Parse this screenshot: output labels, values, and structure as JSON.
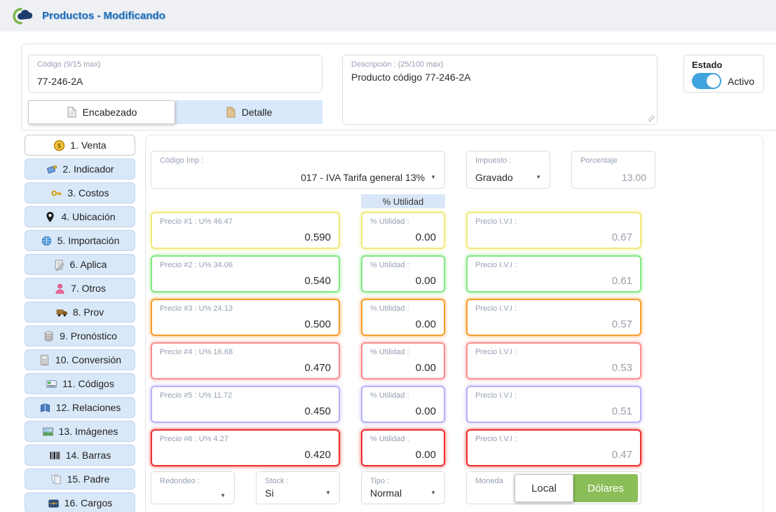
{
  "header": {
    "title": "Productos - Modificando"
  },
  "form": {
    "codigo": {
      "label": "Código (9/15 max)",
      "value": "77-246-2A"
    },
    "descripcion": {
      "label": "Descripción : (25/100 max)",
      "value": "Producto código 77-246-2A"
    },
    "estado": {
      "label": "Estado",
      "value": "Activo",
      "on": true,
      "toggle_color": "#3fa3dd"
    },
    "tabs": [
      {
        "label": "Encabezado",
        "icon": "document-icon",
        "active": true
      },
      {
        "label": "Detalle",
        "icon": "document-tan-icon",
        "active": false
      }
    ]
  },
  "sidebar": {
    "items": [
      {
        "label": "1. Venta",
        "icon": "coin-icon",
        "active": true
      },
      {
        "label": "2. Indicador",
        "icon": "price-tag-icon",
        "active": false
      },
      {
        "label": "3. Costos",
        "icon": "key-icon",
        "active": false
      },
      {
        "label": "4. Ubicación",
        "icon": "location-pin-icon",
        "active": false
      },
      {
        "label": "5. Importación",
        "icon": "globe-icon",
        "active": false
      },
      {
        "label": "6. Aplica",
        "icon": "notes-icon",
        "active": false
      },
      {
        "label": "7. Otros",
        "icon": "person-icon",
        "active": false
      },
      {
        "label": "8. Prov",
        "icon": "truck-icon",
        "active": false
      },
      {
        "label": "9. Pronóstico",
        "icon": "database-icon",
        "active": false
      },
      {
        "label": "10. Conversión",
        "icon": "calculator-icon",
        "active": false
      },
      {
        "label": "11. Códigos",
        "icon": "code-card-icon",
        "active": false
      },
      {
        "label": "12. Relaciones",
        "icon": "book-icon",
        "active": false
      },
      {
        "label": "13. Imágenes",
        "icon": "image-icon",
        "active": false
      },
      {
        "label": "14. Barras",
        "icon": "barcode-icon",
        "active": false
      },
      {
        "label": "15. Padre",
        "icon": "documents-icon",
        "active": false
      },
      {
        "label": "16. Cargos",
        "icon": "chest-icon",
        "active": false
      }
    ]
  },
  "venta": {
    "codigo_imp": {
      "label": "Código Imp :",
      "value": "017 - IVA Tarifa general 13%"
    },
    "impuesto": {
      "label": "Impuesto :",
      "value": "Gravado"
    },
    "porcentaje": {
      "label": "Porcentaje",
      "value": "13.00"
    },
    "utilidad_header": "% Utilidad",
    "price_rows": [
      {
        "precio_label": "Precio #1 : U% 46.47",
        "precio": "0.590",
        "utilidad_label": "% Utilidad :",
        "utilidad": "0.00",
        "ivi_label": "Precio I.V.I :",
        "ivi": "0.67",
        "color": "#f1e97e"
      },
      {
        "precio_label": "Precio #2 : U% 34.06",
        "precio": "0.540",
        "utilidad_label": "% Utilidad :",
        "utilidad": "0.00",
        "ivi_label": "Precio I.V.I :",
        "ivi": "0.61",
        "color": "#83e783"
      },
      {
        "precio_label": "Precio #3 : U% 24.13",
        "precio": "0.500",
        "utilidad_label": "% Utilidad :",
        "utilidad": "0.00",
        "ivi_label": "Precio I.V.I :",
        "ivi": "0.57",
        "color": "#f59d2c"
      },
      {
        "precio_label": "Precio #4 : U% 16.68",
        "precio": "0.470",
        "utilidad_label": "% Utilidad :",
        "utilidad": "0.00",
        "ivi_label": "Precio I.V.I :",
        "ivi": "0.53",
        "color": "#f98f8f"
      },
      {
        "precio_label": "Precio #5 : U% 11.72",
        "precio": "0.450",
        "utilidad_label": "% Utilidad :",
        "utilidad": "0.00",
        "ivi_label": "Precio I.V.I :",
        "ivi": "0.51",
        "color": "#b7b3f7"
      },
      {
        "precio_label": "Precio #6 : U% 4.27",
        "precio": "0.420",
        "utilidad_label": "% Utilidad :",
        "utilidad": "0.00",
        "ivi_label": "Precio I.V.I :",
        "ivi": "0.47",
        "color": "#ee3030"
      }
    ],
    "redondeo": {
      "label": "Redondeo :",
      "value": ""
    },
    "stock": {
      "label": "Stock :",
      "value": "Si"
    },
    "tipo": {
      "label": "Tipo :",
      "value": "Normal"
    },
    "moneda": {
      "label": "Moneda",
      "local_label": "Local",
      "dolares_label": "Dólares",
      "active": "Dólares",
      "active_color": "#8bbd58"
    }
  }
}
